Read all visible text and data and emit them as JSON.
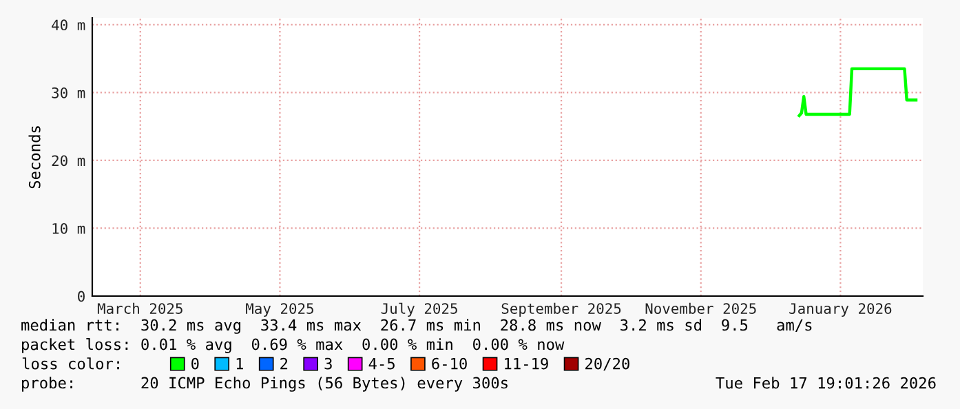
{
  "chart_data": {
    "type": "line",
    "ylabel": "Seconds",
    "xlim": [
      "2025-02-19",
      "2026-02-17"
    ],
    "xticks": [
      {
        "value": "2025-03-12",
        "label": "March 2025"
      },
      {
        "value": "2025-05-12",
        "label": "May 2025"
      },
      {
        "value": "2025-07-12",
        "label": "July 2025"
      },
      {
        "value": "2025-09-12",
        "label": "September 2025"
      },
      {
        "value": "2025-11-12",
        "label": "November 2025"
      },
      {
        "value": "2026-01-12",
        "label": "January 2026"
      }
    ],
    "ylim": [
      0,
      41
    ],
    "yticks": [
      0,
      {
        "value": 10,
        "label": "10 m"
      },
      {
        "value": 20,
        "label": "20 m"
      },
      {
        "value": 30,
        "label": "30 m"
      },
      {
        "value": 40,
        "label": "40 m"
      }
    ],
    "grid": true,
    "legend": "bottom",
    "legend_title": "loss color:",
    "series": [
      {
        "name": "0",
        "color": "#00ff00",
        "x": [
          "2025-12-25",
          "2025-12-26",
          "2025-12-27",
          "2025-12-28",
          "2026-01-16",
          "2026-01-17",
          "2026-02-09",
          "2026-02-10",
          "2026-02-14"
        ],
        "values": [
          26.6,
          27.0,
          29.4,
          26.8,
          26.8,
          33.5,
          33.5,
          28.9,
          28.9
        ]
      },
      {
        "name": "1",
        "color": "#00bbff"
      },
      {
        "name": "2",
        "color": "#0066ff"
      },
      {
        "name": "3",
        "color": "#8800ff"
      },
      {
        "name": "4-5",
        "color": "#ff00ff"
      },
      {
        "name": "6-10",
        "color": "#ff5500"
      },
      {
        "name": "11-19",
        "color": "#ff0000"
      },
      {
        "name": "20/20",
        "color": "#a00000"
      }
    ],
    "annotations": [
      "median rtt:  30.2 ms avg  33.4 ms max  26.7 ms min  28.8 ms now  3.2 ms sd  9.5   am/s",
      "packet loss: 0.01 % avg  0.69 % max  0.00 % min  0.00 % now",
      "probe:       20 ICMP Echo Pings (56 Bytes) every 300s",
      "Tue Feb 17 19:01:26 2026"
    ]
  }
}
